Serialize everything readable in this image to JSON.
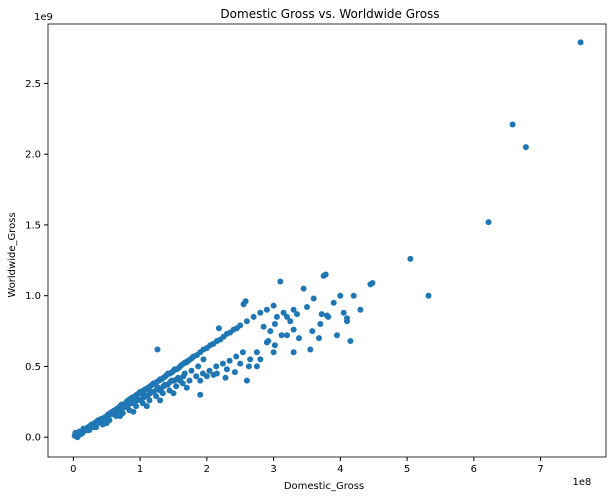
{
  "chart_data": {
    "type": "scatter",
    "title": "Domestic Gross vs. Worldwide Gross",
    "xlabel": "Domestic_Gross",
    "ylabel": "Worldwide_Gross",
    "x_multiplier_label": "1e8",
    "y_multiplier_label": "1e9",
    "xlim": [
      -0.38,
      7.98
    ],
    "ylim": [
      -0.14,
      2.92
    ],
    "x_ticks": [
      0,
      1,
      2,
      3,
      4,
      5,
      6,
      7
    ],
    "x_tick_labels": [
      "0",
      "1",
      "2",
      "3",
      "4",
      "5",
      "6",
      "7"
    ],
    "y_ticks": [
      0.0,
      0.5,
      1.0,
      1.5,
      2.0,
      2.5
    ],
    "y_tick_labels": [
      "0.0",
      "0.5",
      "1.0",
      "1.5",
      "2.0",
      "2.5"
    ],
    "grid": false,
    "legend": "none",
    "marker_color": "#1f77b4",
    "points": {
      "x": [
        0.02,
        0.05,
        0.08,
        0.1,
        0.12,
        0.15,
        0.18,
        0.2,
        0.22,
        0.25,
        0.28,
        0.3,
        0.32,
        0.35,
        0.38,
        0.4,
        0.42,
        0.45,
        0.48,
        0.5,
        0.52,
        0.55,
        0.58,
        0.6,
        0.62,
        0.65,
        0.68,
        0.7,
        0.72,
        0.75,
        0.78,
        0.8,
        0.82,
        0.85,
        0.88,
        0.9,
        0.92,
        0.95,
        0.98,
        1.0,
        1.02,
        1.05,
        1.08,
        1.1,
        1.12,
        1.15,
        1.18,
        1.2,
        1.22,
        1.25,
        1.28,
        1.3,
        1.32,
        1.35,
        1.38,
        1.4,
        1.42,
        1.45,
        1.48,
        1.5,
        1.52,
        1.55,
        1.58,
        1.6,
        1.62,
        1.65,
        1.68,
        1.7,
        1.72,
        1.75,
        1.78,
        1.8,
        1.85,
        1.9,
        1.95,
        2.0,
        2.05,
        2.1,
        2.15,
        2.2,
        2.25,
        2.3,
        2.35,
        2.4,
        2.45,
        2.5,
        2.6,
        2.7,
        2.8,
        2.9,
        3.0,
        0.06,
        0.14,
        0.24,
        0.34,
        0.44,
        0.54,
        0.64,
        0.74,
        0.84,
        0.94,
        1.04,
        1.14,
        1.24,
        1.34,
        1.44,
        1.54,
        1.64,
        1.74,
        1.84,
        1.94,
        2.04,
        2.14,
        2.24,
        2.34,
        2.44,
        2.54,
        0.03,
        0.09,
        0.16,
        0.27,
        0.37,
        0.47,
        0.57,
        0.67,
        0.77,
        0.87,
        0.97,
        1.07,
        1.17,
        1.27,
        1.37,
        1.47,
        1.57,
        1.67,
        1.77,
        1.87,
        0.11,
        0.21,
        0.31,
        0.41,
        0.51,
        0.61,
        0.71,
        0.81,
        0.91,
        1.01,
        1.11,
        1.21,
        1.31,
        1.41,
        1.51,
        0.15,
        0.25,
        0.35,
        0.45,
        0.55,
        0.65,
        0.75,
        0.85,
        0.95,
        1.05,
        1.15,
        1.25,
        1.35,
        1.45,
        1.55,
        1.65,
        0.5,
        0.7,
        0.9,
        1.1,
        1.3,
        1.5,
        1.7,
        1.9,
        2.1,
        2.3,
        2.5,
        2.55,
        2.58,
        2.65,
        2.75,
        2.85,
        2.92,
        2.95,
        3.02,
        3.05,
        3.1,
        3.15,
        3.2,
        3.25,
        3.3,
        3.35,
        3.45,
        3.5,
        3.55,
        3.6,
        3.7,
        3.75,
        3.78,
        3.8,
        3.9,
        3.95,
        4.0,
        4.05,
        4.1,
        4.15,
        4.2,
        4.3,
        4.45,
        4.48,
        5.05,
        5.32,
        6.22,
        6.58,
        6.78,
        7.6,
        1.26,
        2.18,
        2.6,
        3.02,
        3.2,
        3.3,
        3.68,
        3.82,
        2.75,
        3.3,
        4.1,
        2.9,
        1.95,
        3.12,
        3.72,
        2.15,
        2.0,
        1.6,
        1.3,
        1.9,
        2.28,
        2.42,
        2.63,
        2.8,
        3.0,
        3.38,
        3.58
      ],
      "y": [
        0.01,
        0.02,
        0.02,
        0.03,
        0.04,
        0.05,
        0.05,
        0.06,
        0.07,
        0.07,
        0.08,
        0.09,
        0.1,
        0.1,
        0.11,
        0.12,
        0.13,
        0.13,
        0.14,
        0.15,
        0.16,
        0.17,
        0.18,
        0.18,
        0.19,
        0.2,
        0.21,
        0.22,
        0.23,
        0.23,
        0.24,
        0.25,
        0.26,
        0.27,
        0.28,
        0.28,
        0.29,
        0.3,
        0.31,
        0.32,
        0.31,
        0.33,
        0.34,
        0.34,
        0.35,
        0.36,
        0.37,
        0.38,
        0.38,
        0.39,
        0.4,
        0.41,
        0.41,
        0.42,
        0.43,
        0.44,
        0.45,
        0.45,
        0.46,
        0.47,
        0.48,
        0.48,
        0.49,
        0.5,
        0.51,
        0.52,
        0.53,
        0.53,
        0.54,
        0.55,
        0.56,
        0.57,
        0.58,
        0.6,
        0.62,
        0.63,
        0.65,
        0.66,
        0.68,
        0.69,
        0.71,
        0.73,
        0.74,
        0.76,
        0.77,
        0.79,
        0.82,
        0.85,
        0.88,
        0.9,
        0.93,
        0.0,
        0.03,
        0.05,
        0.07,
        0.09,
        0.12,
        0.15,
        0.17,
        0.19,
        0.22,
        0.24,
        0.26,
        0.29,
        0.31,
        0.33,
        0.36,
        0.38,
        0.4,
        0.43,
        0.45,
        0.47,
        0.5,
        0.52,
        0.54,
        0.57,
        0.6,
        0.03,
        0.04,
        0.06,
        0.09,
        0.12,
        0.14,
        0.17,
        0.2,
        0.22,
        0.24,
        0.27,
        0.3,
        0.32,
        0.35,
        0.37,
        0.4,
        0.42,
        0.45,
        0.47,
        0.5,
        0.02,
        0.05,
        0.07,
        0.1,
        0.13,
        0.16,
        0.18,
        0.21,
        0.24,
        0.26,
        0.29,
        0.32,
        0.34,
        0.37,
        0.4,
        0.06,
        0.08,
        0.11,
        0.13,
        0.16,
        0.18,
        0.21,
        0.24,
        0.26,
        0.28,
        0.31,
        0.34,
        0.36,
        0.39,
        0.41,
        0.43,
        0.1,
        0.15,
        0.18,
        0.22,
        0.26,
        0.31,
        0.35,
        0.4,
        0.44,
        0.48,
        0.52,
        0.94,
        0.96,
        0.55,
        0.6,
        0.78,
        0.68,
        0.75,
        0.8,
        0.85,
        1.1,
        0.88,
        0.72,
        0.82,
        0.9,
        0.87,
        1.05,
        0.92,
        0.62,
        0.98,
        0.8,
        1.14,
        1.15,
        0.86,
        0.95,
        0.72,
        1.0,
        0.88,
        0.84,
        0.68,
        1.0,
        0.9,
        1.08,
        1.09,
        1.26,
        1.0,
        1.52,
        2.21,
        2.05,
        2.79,
        0.62,
        0.77,
        0.4,
        0.65,
        0.85,
        0.76,
        0.7,
        0.85,
        0.5,
        0.6,
        0.82,
        0.67,
        0.55,
        0.72,
        0.87,
        0.45,
        0.43,
        0.4,
        0.33,
        0.3,
        0.42,
        0.46,
        0.5,
        0.55,
        0.6,
        0.7,
        0.75
      ]
    }
  }
}
